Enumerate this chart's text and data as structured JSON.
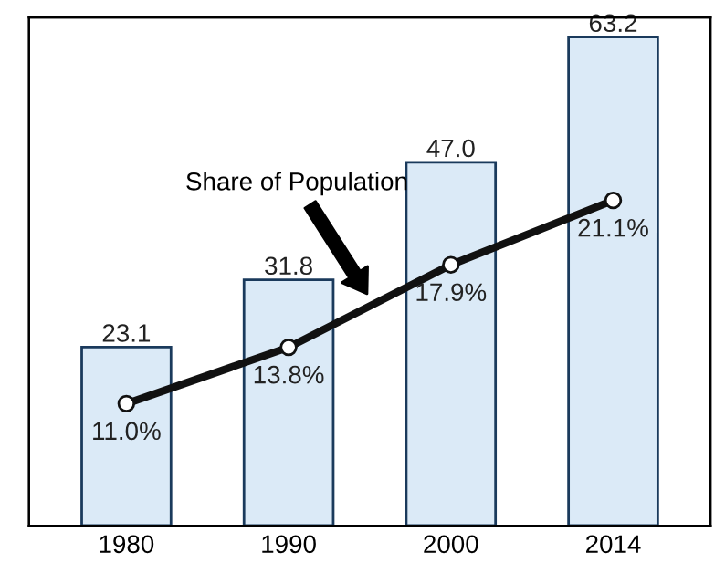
{
  "chart_data": {
    "type": "bar",
    "categories": [
      "1980",
      "1990",
      "2000",
      "2014"
    ],
    "series": [
      {
        "color": "#dbeaf7",
        "values": [
          23.1,
          31.8,
          47.0,
          63.2
        ],
        "value_labels": [
          "23.1",
          "31.8",
          "47.0",
          "63.2"
        ]
      },
      {
        "type": "line",
        "axis": "y2",
        "color": "#111111",
        "marker": "circle",
        "line_style": "solid",
        "values": [
          11.0,
          13.8,
          17.9,
          21.1
        ],
        "value_labels": [
          "11.0%",
          "13.8%",
          "17.9%",
          "21.1%"
        ]
      }
    ],
    "annotations": [
      "Share of Population"
    ],
    "tick_labels": "x",
    "grid": false,
    "legend": false
  }
}
